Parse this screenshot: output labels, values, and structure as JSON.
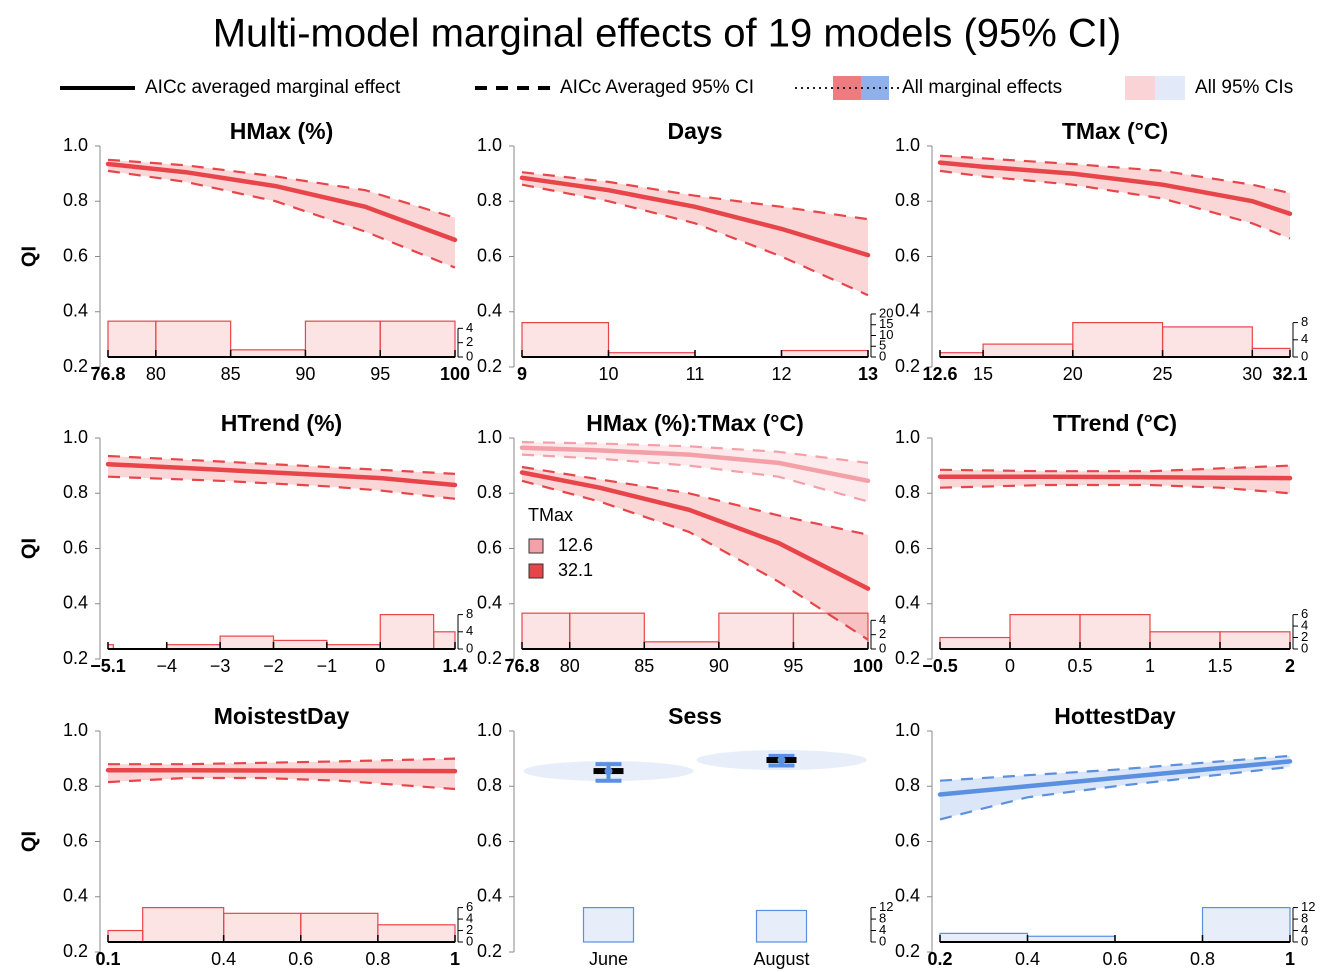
{
  "title": "Multi-model marginal effects of 19 models (95% CI)",
  "legend": [
    "AICc averaged marginal effect",
    "AICc Averaged 95% CI",
    "All marginal effects",
    "All 95% CIs"
  ],
  "chart_data": [
    {
      "type": "line",
      "title": "HMax (%)",
      "ylabel": "QI",
      "xlim": [
        76.8,
        100
      ],
      "xticks": [
        76.8,
        80,
        85,
        90,
        95,
        100
      ],
      "ylim": [
        0.2,
        1
      ],
      "yticks": [
        0.2,
        0.4,
        0.6,
        0.8,
        {
          "value": 1,
          "label": "1.0"
        }
      ],
      "x": [
        76.8,
        82,
        88,
        94,
        100
      ],
      "series": [
        {
          "color": "#e8454a",
          "effect": [
            0.935,
            0.905,
            0.855,
            0.78,
            0.66
          ],
          "lower": [
            0.91,
            0.87,
            0.8,
            0.69,
            0.56
          ],
          "upper": [
            0.95,
            0.93,
            0.89,
            0.84,
            0.74
          ]
        }
      ],
      "hist": {
        "bins": [
          76.8,
          80,
          85,
          90,
          95,
          100
        ],
        "counts": [
          5,
          5,
          1,
          5,
          5
        ],
        "ylim": [
          0,
          6
        ],
        "yticks": [
          0,
          2,
          4
        ]
      }
    },
    {
      "type": "line",
      "title": "Days",
      "xlim": [
        9,
        13
      ],
      "xticks": [
        9,
        10,
        11,
        12,
        13
      ],
      "ylim": [
        0.2,
        1
      ],
      "yticks": [
        0.2,
        0.4,
        0.6,
        0.8,
        {
          "value": 1,
          "label": "1.0"
        }
      ],
      "x": [
        9,
        10,
        11,
        12,
        13
      ],
      "series": [
        {
          "color": "#e8454a",
          "effect": [
            0.885,
            0.84,
            0.78,
            0.7,
            0.605
          ],
          "lower": [
            0.86,
            0.8,
            0.72,
            0.6,
            0.46
          ],
          "upper": [
            0.905,
            0.87,
            0.82,
            0.78,
            0.735
          ]
        }
      ],
      "hist": {
        "bins": [
          9,
          10,
          11,
          12,
          13
        ],
        "counts": [
          16,
          2,
          0,
          3
        ],
        "ylim": [
          0,
          20
        ],
        "yticks": [
          0,
          5,
          10,
          15,
          20
        ]
      }
    },
    {
      "type": "line",
      "title": "TMax (°C)",
      "xlim": [
        12.6,
        32.1
      ],
      "xticks": [
        12.6,
        15,
        20,
        25,
        30,
        32.1
      ],
      "ylim": [
        0.2,
        1
      ],
      "yticks": [
        0.2,
        0.4,
        0.6,
        0.8,
        {
          "value": 1,
          "label": "1.0"
        }
      ],
      "x": [
        12.6,
        15,
        20,
        25,
        30,
        32.1
      ],
      "series": [
        {
          "color": "#e8454a",
          "effect": [
            0.94,
            0.925,
            0.9,
            0.86,
            0.8,
            0.755
          ],
          "lower": [
            0.91,
            0.89,
            0.86,
            0.81,
            0.72,
            0.665
          ],
          "upper": [
            0.965,
            0.955,
            0.935,
            0.91,
            0.86,
            0.83
          ]
        }
      ],
      "hist": {
        "bins": [
          12.6,
          15,
          20,
          25,
          30,
          32.1
        ],
        "counts": [
          1,
          3,
          8,
          7,
          2
        ],
        "ylim": [
          0,
          10
        ],
        "yticks": [
          0,
          4,
          8
        ]
      }
    },
    {
      "type": "line",
      "title": "HTrend (%)",
      "ylabel": "QI",
      "xlim": [
        -5.1,
        1.4
      ],
      "xticks": [
        {
          "value": -5.1,
          "label": "−5.1"
        },
        {
          "value": -4,
          "label": "−4"
        },
        {
          "value": -3,
          "label": "−3"
        },
        {
          "value": -2,
          "label": "−2"
        },
        {
          "value": -1,
          "label": "−1"
        },
        0,
        1.4
      ],
      "ylim": [
        0.2,
        1
      ],
      "yticks": [
        0.2,
        0.4,
        0.6,
        0.8,
        {
          "value": 1,
          "label": "1.0"
        }
      ],
      "x": [
        -5.1,
        -3,
        -1,
        0,
        1.4
      ],
      "series": [
        {
          "color": "#e8454a",
          "effect": [
            0.905,
            0.885,
            0.865,
            0.855,
            0.83
          ],
          "lower": [
            0.86,
            0.845,
            0.825,
            0.81,
            0.78
          ],
          "upper": [
            0.935,
            0.915,
            0.895,
            0.885,
            0.87
          ]
        }
      ],
      "hist": {
        "bins": [
          -5.1,
          -5,
          -4,
          -3,
          -2,
          -1,
          0,
          1,
          1.4
        ],
        "counts": [
          1,
          0,
          1,
          3,
          2,
          1,
          8,
          4
        ],
        "ylim": [
          0,
          10
        ],
        "yticks": [
          0,
          4,
          8
        ]
      }
    },
    {
      "type": "line",
      "title": "HMax (%):TMax (°C)",
      "legend_title": "TMax",
      "xlim": [
        76.8,
        100
      ],
      "xticks": [
        76.8,
        80,
        85,
        90,
        95,
        100
      ],
      "ylim": [
        0.2,
        1
      ],
      "yticks": [
        0.2,
        0.4,
        0.6,
        0.8,
        {
          "value": 1,
          "label": "1.0"
        }
      ],
      "x": [
        76.8,
        82,
        88,
        94,
        100
      ],
      "series": [
        {
          "name": "12.6",
          "color": "#f4a0a8",
          "effect": [
            0.965,
            0.955,
            0.94,
            0.91,
            0.845
          ],
          "lower": [
            0.94,
            0.925,
            0.9,
            0.86,
            0.77
          ],
          "upper": [
            0.985,
            0.98,
            0.97,
            0.95,
            0.91
          ]
        },
        {
          "name": "32.1",
          "color": "#e8454a",
          "effect": [
            0.875,
            0.82,
            0.74,
            0.62,
            0.455
          ],
          "lower": [
            0.845,
            0.77,
            0.66,
            0.48,
            0.27
          ],
          "upper": [
            0.895,
            0.85,
            0.8,
            0.72,
            0.65
          ]
        }
      ],
      "hist": {
        "bins": [
          76.8,
          80,
          85,
          90,
          95,
          100
        ],
        "counts": [
          5,
          5,
          1,
          5,
          5
        ],
        "ylim": [
          0,
          6
        ],
        "yticks": [
          0,
          2,
          4
        ]
      }
    },
    {
      "type": "line",
      "title": "TTrend (°C)",
      "xlim": [
        -0.5,
        2
      ],
      "xticks": [
        {
          "value": -0.5,
          "label": "−0.5"
        },
        0,
        0.5,
        1,
        1.5,
        2
      ],
      "ylim": [
        0.2,
        1
      ],
      "yticks": [
        0.2,
        0.4,
        0.6,
        0.8,
        {
          "value": 1,
          "label": "1.0"
        }
      ],
      "x": [
        -0.5,
        0.25,
        1,
        1.5,
        2
      ],
      "series": [
        {
          "color": "#e8454a",
          "effect": [
            0.86,
            0.86,
            0.858,
            0.856,
            0.855
          ],
          "lower": [
            0.82,
            0.83,
            0.83,
            0.82,
            0.8
          ],
          "upper": [
            0.885,
            0.88,
            0.88,
            0.89,
            0.9
          ]
        }
      ],
      "hist": {
        "bins": [
          -0.5,
          0,
          0.5,
          1,
          1.5,
          2
        ],
        "counts": [
          2,
          6,
          6,
          3,
          3
        ],
        "ylim": [
          0,
          7.5
        ],
        "yticks": [
          0,
          2,
          4,
          6
        ]
      }
    },
    {
      "type": "line",
      "title": "MoistestDay",
      "ylabel": "QI",
      "xlim": [
        0.1,
        1
      ],
      "xticks": [
        0.1,
        0.4,
        0.6,
        0.8,
        1
      ],
      "ylim": [
        0.2,
        1
      ],
      "yticks": [
        0.2,
        0.4,
        0.6,
        0.8,
        {
          "value": 1,
          "label": "1.0"
        }
      ],
      "x": [
        0.1,
        0.3,
        0.5,
        0.7,
        1
      ],
      "series": [
        {
          "color": "#e8454a",
          "effect": [
            0.858,
            0.858,
            0.857,
            0.856,
            0.855
          ],
          "lower": [
            0.815,
            0.83,
            0.83,
            0.82,
            0.79
          ],
          "upper": [
            0.88,
            0.88,
            0.885,
            0.89,
            0.9
          ]
        }
      ],
      "hist": {
        "bins": [
          0.1,
          0.19,
          0.4,
          0.6,
          0.8,
          1
        ],
        "counts": [
          2,
          6,
          5,
          5,
          3
        ],
        "ylim": [
          0,
          7.5
        ],
        "yticks": [
          0,
          2,
          4,
          6
        ]
      }
    },
    {
      "type": "categorical",
      "title": "Sess",
      "categories": [
        "June",
        "August"
      ],
      "ylim": [
        0.2,
        1
      ],
      "yticks": [
        0.2,
        0.4,
        0.6,
        0.8,
        {
          "value": 1,
          "label": "1.0"
        }
      ],
      "series": [
        {
          "color": "#5b8fe0",
          "effect": [
            0.855,
            0.895
          ],
          "lower": [
            0.82,
            0.875
          ],
          "upper": [
            0.88,
            0.91
          ]
        }
      ],
      "hist": {
        "counts": [
          12,
          11
        ],
        "ylim": [
          0,
          15
        ],
        "yticks": [
          0,
          4,
          8,
          12
        ]
      }
    },
    {
      "type": "line",
      "title": "HottestDay",
      "xlim": [
        0.2,
        1
      ],
      "xticks": [
        0.2,
        0.4,
        0.6,
        0.8,
        1
      ],
      "ylim": [
        0.2,
        1
      ],
      "yticks": [
        0.2,
        0.4,
        0.6,
        0.8,
        {
          "value": 1,
          "label": "1.0"
        }
      ],
      "x": [
        0.2,
        0.4,
        0.6,
        0.8,
        1
      ],
      "series": [
        {
          "color": "#5b8fe0",
          "effect": [
            0.77,
            0.8,
            0.83,
            0.86,
            0.89
          ],
          "lower": [
            0.68,
            0.76,
            0.8,
            0.835,
            0.87
          ],
          "upper": [
            0.82,
            0.84,
            0.86,
            0.885,
            0.91
          ]
        }
      ],
      "hist": {
        "bins": [
          0.2,
          0.4,
          0.6,
          0.8,
          1
        ],
        "counts": [
          3,
          2,
          0,
          12
        ],
        "ylim": [
          0,
          15
        ],
        "yticks": [
          0,
          4,
          8,
          12
        ]
      }
    }
  ]
}
